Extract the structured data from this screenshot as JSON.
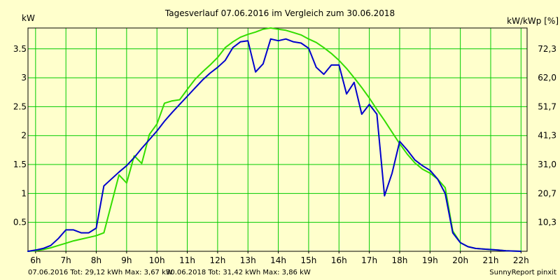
{
  "chart_data": {
    "type": "line",
    "title": "Tagesverlauf 07.06.2016 im Vergleich zum 30.06.2018",
    "ylabel_left": "kW",
    "ylabel_right": "kW/kWp [%]",
    "xlim": [
      5.75,
      22.2
    ],
    "ylim": [
      0,
      3.86
    ],
    "grid": true,
    "x_ticks": [
      {
        "x": 6,
        "label": "6h"
      },
      {
        "x": 7,
        "label": "7h"
      },
      {
        "x": 8,
        "label": "8h"
      },
      {
        "x": 9,
        "label": "9h"
      },
      {
        "x": 10,
        "label": "10h"
      },
      {
        "x": 11,
        "label": "11h"
      },
      {
        "x": 12,
        "label": "12h"
      },
      {
        "x": 13,
        "label": "13h"
      },
      {
        "x": 14,
        "label": "14h"
      },
      {
        "x": 15,
        "label": "15h"
      },
      {
        "x": 16,
        "label": "16h"
      },
      {
        "x": 17,
        "label": "17h"
      },
      {
        "x": 18,
        "label": "18h"
      },
      {
        "x": 19,
        "label": "19h"
      },
      {
        "x": 20,
        "label": "20h"
      },
      {
        "x": 21,
        "label": "21h"
      },
      {
        "x": 22,
        "label": "22h"
      }
    ],
    "y_ticks_left": [
      {
        "y": 0.5,
        "label": "0.5"
      },
      {
        "y": 1,
        "label": "1"
      },
      {
        "y": 1.5,
        "label": "1.5"
      },
      {
        "y": 2,
        "label": "2"
      },
      {
        "y": 2.5,
        "label": "2.5"
      },
      {
        "y": 3,
        "label": "3"
      },
      {
        "y": 3.5,
        "label": "3.5"
      }
    ],
    "y_ticks_right": [
      {
        "y": 0.5,
        "label": "10,3"
      },
      {
        "y": 1,
        "label": "20,7"
      },
      {
        "y": 1.5,
        "label": "31,0"
      },
      {
        "y": 2,
        "label": "41,3"
      },
      {
        "y": 2.5,
        "label": "51,7"
      },
      {
        "y": 3,
        "label": "62,0"
      },
      {
        "y": 3.5,
        "label": "72,3"
      }
    ],
    "series": [
      {
        "name": "07.06.2016",
        "color": "#0000cc",
        "points": [
          [
            5.75,
            0
          ],
          [
            6.0,
            0.02
          ],
          [
            6.25,
            0.05
          ],
          [
            6.5,
            0.1
          ],
          [
            6.75,
            0.22
          ],
          [
            7.0,
            0.37
          ],
          [
            7.25,
            0.37
          ],
          [
            7.5,
            0.32
          ],
          [
            7.75,
            0.32
          ],
          [
            8.0,
            0.4
          ],
          [
            8.25,
            1.13
          ],
          [
            8.5,
            1.25
          ],
          [
            8.75,
            1.37
          ],
          [
            9.0,
            1.48
          ],
          [
            9.25,
            1.62
          ],
          [
            9.5,
            1.78
          ],
          [
            9.75,
            1.93
          ],
          [
            10.0,
            2.08
          ],
          [
            10.25,
            2.25
          ],
          [
            10.5,
            2.4
          ],
          [
            10.75,
            2.54
          ],
          [
            11.0,
            2.68
          ],
          [
            11.25,
            2.82
          ],
          [
            11.5,
            2.96
          ],
          [
            11.75,
            3.08
          ],
          [
            12.0,
            3.18
          ],
          [
            12.25,
            3.3
          ],
          [
            12.5,
            3.52
          ],
          [
            12.75,
            3.62
          ],
          [
            13.0,
            3.64
          ],
          [
            13.25,
            3.1
          ],
          [
            13.5,
            3.24
          ],
          [
            13.75,
            3.67
          ],
          [
            14.0,
            3.64
          ],
          [
            14.25,
            3.67
          ],
          [
            14.5,
            3.62
          ],
          [
            14.75,
            3.6
          ],
          [
            15.0,
            3.51
          ],
          [
            15.25,
            3.18
          ],
          [
            15.5,
            3.06
          ],
          [
            15.75,
            3.22
          ],
          [
            16.0,
            3.22
          ],
          [
            16.25,
            2.72
          ],
          [
            16.5,
            2.92
          ],
          [
            16.75,
            2.37
          ],
          [
            17.0,
            2.54
          ],
          [
            17.25,
            2.37
          ],
          [
            17.5,
            0.96
          ],
          [
            17.75,
            1.35
          ],
          [
            18.0,
            1.9
          ],
          [
            18.25,
            1.75
          ],
          [
            18.5,
            1.58
          ],
          [
            18.75,
            1.48
          ],
          [
            19.0,
            1.4
          ],
          [
            19.25,
            1.25
          ],
          [
            19.5,
            1.0
          ],
          [
            19.75,
            0.32
          ],
          [
            20.0,
            0.15
          ],
          [
            20.25,
            0.08
          ],
          [
            20.5,
            0.05
          ],
          [
            20.75,
            0.04
          ],
          [
            21.0,
            0.03
          ],
          [
            21.25,
            0.02
          ],
          [
            21.5,
            0.01
          ],
          [
            22.0,
            0.0
          ]
        ]
      },
      {
        "name": "30.06.2018",
        "color": "#33dd00",
        "points": [
          [
            5.75,
            0
          ],
          [
            6.0,
            0.01
          ],
          [
            6.25,
            0.03
          ],
          [
            6.5,
            0.06
          ],
          [
            6.75,
            0.1
          ],
          [
            7.0,
            0.14
          ],
          [
            7.25,
            0.18
          ],
          [
            7.5,
            0.21
          ],
          [
            7.75,
            0.24
          ],
          [
            8.0,
            0.27
          ],
          [
            8.25,
            0.32
          ],
          [
            8.5,
            0.82
          ],
          [
            8.75,
            1.32
          ],
          [
            9.0,
            1.18
          ],
          [
            9.25,
            1.65
          ],
          [
            9.5,
            1.52
          ],
          [
            9.75,
            2.02
          ],
          [
            10.0,
            2.2
          ],
          [
            10.25,
            2.56
          ],
          [
            10.5,
            2.6
          ],
          [
            10.75,
            2.62
          ],
          [
            11.0,
            2.8
          ],
          [
            11.25,
            2.97
          ],
          [
            11.5,
            3.1
          ],
          [
            11.75,
            3.22
          ],
          [
            12.0,
            3.35
          ],
          [
            12.25,
            3.52
          ],
          [
            12.5,
            3.62
          ],
          [
            12.75,
            3.7
          ],
          [
            13.0,
            3.75
          ],
          [
            13.25,
            3.79
          ],
          [
            13.5,
            3.84
          ],
          [
            13.75,
            3.86
          ],
          [
            14.0,
            3.84
          ],
          [
            14.25,
            3.82
          ],
          [
            14.5,
            3.78
          ],
          [
            14.75,
            3.74
          ],
          [
            15.0,
            3.67
          ],
          [
            15.25,
            3.61
          ],
          [
            15.5,
            3.52
          ],
          [
            15.75,
            3.42
          ],
          [
            16.0,
            3.3
          ],
          [
            16.25,
            3.16
          ],
          [
            16.5,
            3.0
          ],
          [
            16.75,
            2.83
          ],
          [
            17.0,
            2.65
          ],
          [
            17.25,
            2.45
          ],
          [
            17.5,
            2.26
          ],
          [
            17.75,
            2.06
          ],
          [
            18.0,
            1.86
          ],
          [
            18.25,
            1.68
          ],
          [
            18.5,
            1.53
          ],
          [
            18.75,
            1.42
          ],
          [
            19.0,
            1.35
          ],
          [
            19.25,
            1.25
          ],
          [
            19.5,
            1.1
          ],
          [
            19.75,
            0.35
          ],
          [
            20.0,
            0.15
          ],
          [
            20.25,
            0.08
          ],
          [
            20.5,
            0.05
          ],
          [
            20.75,
            0.04
          ],
          [
            21.0,
            0.03
          ],
          [
            21.25,
            0.02
          ],
          [
            21.5,
            0.01
          ],
          [
            22.0,
            0.0
          ]
        ]
      }
    ]
  },
  "footer": {
    "series1_text": "07.06.2016 Tot: 29,12 kWh Max: 3,67 kW",
    "series2_text": "30.06.2018 Tot: 31,42 kWh Max: 3,86 kW",
    "credit": "SunnyReport pinxit"
  },
  "colors": {
    "background": "#ffffcc",
    "grid": "#00cc00",
    "series1_footer": "#0000cc",
    "series2_footer": "#33cc00"
  }
}
